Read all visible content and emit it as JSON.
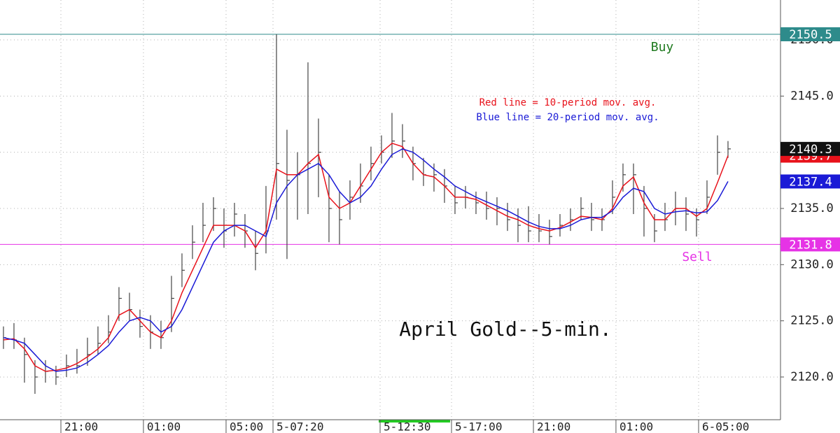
{
  "chart_data": {
    "type": "ohlc",
    "title": "April Gold--5-min.",
    "annotations": [
      {
        "text": "Red line = 10-period mov. avg.",
        "color": "#e8121b"
      },
      {
        "text": "Blue line = 20-period mov. avg.",
        "color": "#1a1ad6"
      }
    ],
    "x": [
      0,
      1,
      2,
      3,
      4,
      5,
      6,
      7,
      8,
      9,
      10,
      11,
      12,
      13,
      14,
      15,
      16,
      17,
      18,
      19,
      20,
      21,
      22,
      23,
      24,
      25,
      26,
      27,
      28,
      29,
      30,
      31,
      32,
      33,
      34,
      35,
      36,
      37,
      38,
      39,
      40,
      41,
      42,
      43,
      44,
      45,
      46,
      47,
      48,
      49,
      50,
      51,
      52,
      53,
      54,
      55,
      56,
      57,
      58,
      59,
      60,
      61,
      62,
      63,
      64,
      65,
      66,
      67,
      68,
      69
    ],
    "bars": {
      "color": "#444444",
      "high": [
        2124.5,
        2124.8,
        2123.5,
        2121.5,
        2121.5,
        2121,
        2122,
        2122.5,
        2123.5,
        2124.5,
        2125.5,
        2128,
        2127.5,
        2126,
        2125.5,
        2125,
        2129,
        2131,
        2133.5,
        2135.5,
        2136,
        2135,
        2135.5,
        2134.5,
        2133,
        2137,
        2150.5,
        2142,
        2140,
        2148,
        2143,
        2138,
        2136.5,
        2137.5,
        2139,
        2140.5,
        2141.5,
        2143.5,
        2142.5,
        2140.5,
        2139.5,
        2139,
        2138.5,
        2137,
        2137,
        2136.5,
        2136.5,
        2136,
        2135.5,
        2135,
        2135.2,
        2134.5,
        2134,
        2134.5,
        2135,
        2136,
        2135.5,
        2135,
        2137.5,
        2139,
        2139,
        2137,
        2134.5,
        2135.5,
        2136.5,
        2136,
        2135,
        2137.5,
        2141.5,
        2141
      ],
      "low": [
        2122.5,
        2122.5,
        2119.5,
        2118.5,
        2119.5,
        2119.3,
        2120,
        2120.3,
        2121,
        2122,
        2123,
        2125,
        2125,
        2123.5,
        2122.5,
        2122.5,
        2124,
        2128,
        2130.5,
        2132,
        2133,
        2131.5,
        2132.5,
        2131.5,
        2129.5,
        2131,
        2134,
        2130.5,
        2134,
        2134.5,
        2136,
        2132,
        2131.8,
        2134,
        2135.5,
        2137.5,
        2139,
        2139.5,
        2139.5,
        2137.5,
        2137,
        2136.5,
        2135.5,
        2134.5,
        2135,
        2134.5,
        2134,
        2133.5,
        2133,
        2132,
        2132,
        2132,
        2131.8,
        2132.5,
        2133,
        2134,
        2133,
        2133,
        2134.5,
        2136.5,
        2134.5,
        2132.5,
        2132,
        2133,
        2133.5,
        2133,
        2132.5,
        2134.5,
        2138,
        2139.5
      ],
      "close": [
        2123.5,
        2123.3,
        2122,
        2120,
        2120.5,
        2120,
        2121,
        2121,
        2122,
        2123,
        2124,
        2127,
        2126,
        2124.5,
        2124,
        2123.5,
        2127,
        2129.5,
        2132,
        2133.5,
        2135,
        2133,
        2134.5,
        2133,
        2131,
        2133,
        2139,
        2137.5,
        2138,
        2139,
        2140,
        2135,
        2134,
        2136,
        2137,
        2139,
        2140,
        2141,
        2141,
        2139,
        2138,
        2138,
        2137,
        2135.5,
        2136,
        2135.5,
        2135,
        2135,
        2134,
        2133.5,
        2133,
        2133,
        2132.5,
        2133.5,
        2134,
        2135,
        2134,
        2134,
        2136,
        2138,
        2138,
        2135,
        2133,
        2134,
        2135,
        2134.5,
        2134,
        2136,
        2140,
        2140.3
      ]
    },
    "series": [
      {
        "color": "#e8121b",
        "values": [
          2123.3,
          2123.4,
          2122.5,
          2121,
          2120.5,
          2120.6,
          2120.8,
          2121.2,
          2121.8,
          2122.5,
          2123.5,
          2125.5,
          2126,
          2125,
          2124,
          2123.5,
          2125,
          2127.5,
          2129.5,
          2131.5,
          2133.5,
          2133.5,
          2133.5,
          2133,
          2131.5,
          2133,
          2138.5,
          2138,
          2138,
          2139,
          2139.8,
          2136,
          2135,
          2135.5,
          2137,
          2138.5,
          2140,
          2140.8,
          2140.5,
          2139,
          2138,
          2137.8,
          2137,
          2136,
          2136,
          2135.8,
          2135.3,
          2134.8,
          2134.3,
          2134,
          2133.5,
          2133.2,
          2133,
          2133.3,
          2133.8,
          2134.3,
          2134.2,
          2134,
          2135,
          2137,
          2137.8,
          2135.5,
          2134,
          2134,
          2135,
          2135,
          2134.3,
          2135,
          2137.3,
          2139.7
        ]
      },
      {
        "color": "#1a1ad6",
        "values": [
          2123.5,
          2123.3,
          2123,
          2122,
          2121,
          2120.5,
          2120.6,
          2120.8,
          2121.3,
          2122,
          2122.8,
          2124,
          2125,
          2125.3,
          2125,
          2124,
          2124.5,
          2126,
          2128,
          2130,
          2132,
          2133,
          2133.5,
          2133.5,
          2133,
          2132.5,
          2135.5,
          2137,
          2138,
          2138.5,
          2139,
          2138,
          2136.5,
          2135.5,
          2136,
          2137,
          2138.5,
          2139.8,
          2140.3,
          2140,
          2139.3,
          2138.5,
          2137.8,
          2137,
          2136.5,
          2136,
          2135.6,
          2135.2,
          2134.8,
          2134.3,
          2133.8,
          2133.4,
          2133.2,
          2133.2,
          2133.5,
          2134,
          2134.2,
          2134.2,
          2134.8,
          2136,
          2136.8,
          2136.5,
          2135,
          2134.5,
          2134.7,
          2134.8,
          2134.6,
          2134.7,
          2135.7,
          2137.4
        ]
      }
    ],
    "levels": [
      {
        "name": "Buy",
        "value": 2150.5,
        "color": "#2e8b8b",
        "label_color": "#1f7a1f"
      },
      {
        "name": "Sell",
        "value": 2131.8,
        "color": "#e633e6",
        "label_color": "#e633e6"
      }
    ],
    "xlim": [
      -0.33,
      74
    ],
    "xticks": [
      {
        "value": 5.47,
        "label": "21:00"
      },
      {
        "value": 13.33,
        "label": "01:00"
      },
      {
        "value": 21.2,
        "label": "05:00"
      },
      {
        "value": 25.67,
        "label": "5-07:20"
      },
      {
        "value": 35.87,
        "label": "5-12:30"
      },
      {
        "value": 42.67,
        "label": "5-17:00"
      },
      {
        "value": 50.47,
        "label": "21:00"
      },
      {
        "value": 58.33,
        "label": "01:00"
      },
      {
        "value": 66.2,
        "label": "6-05:00"
      }
    ],
    "ylim": [
      2116.2,
      2153.55
    ],
    "yticks": [
      {
        "value": 2120,
        "label": "2120.0"
      },
      {
        "value": 2125,
        "label": "2125.0"
      },
      {
        "value": 2130,
        "label": "2130.0"
      },
      {
        "value": 2135,
        "label": "2135.0"
      },
      {
        "value": 2140,
        "label": "2140.0"
      },
      {
        "value": 2145,
        "label": "2145.0"
      },
      {
        "value": 2150,
        "label": "2150.0"
      }
    ],
    "grid": true
  }
}
